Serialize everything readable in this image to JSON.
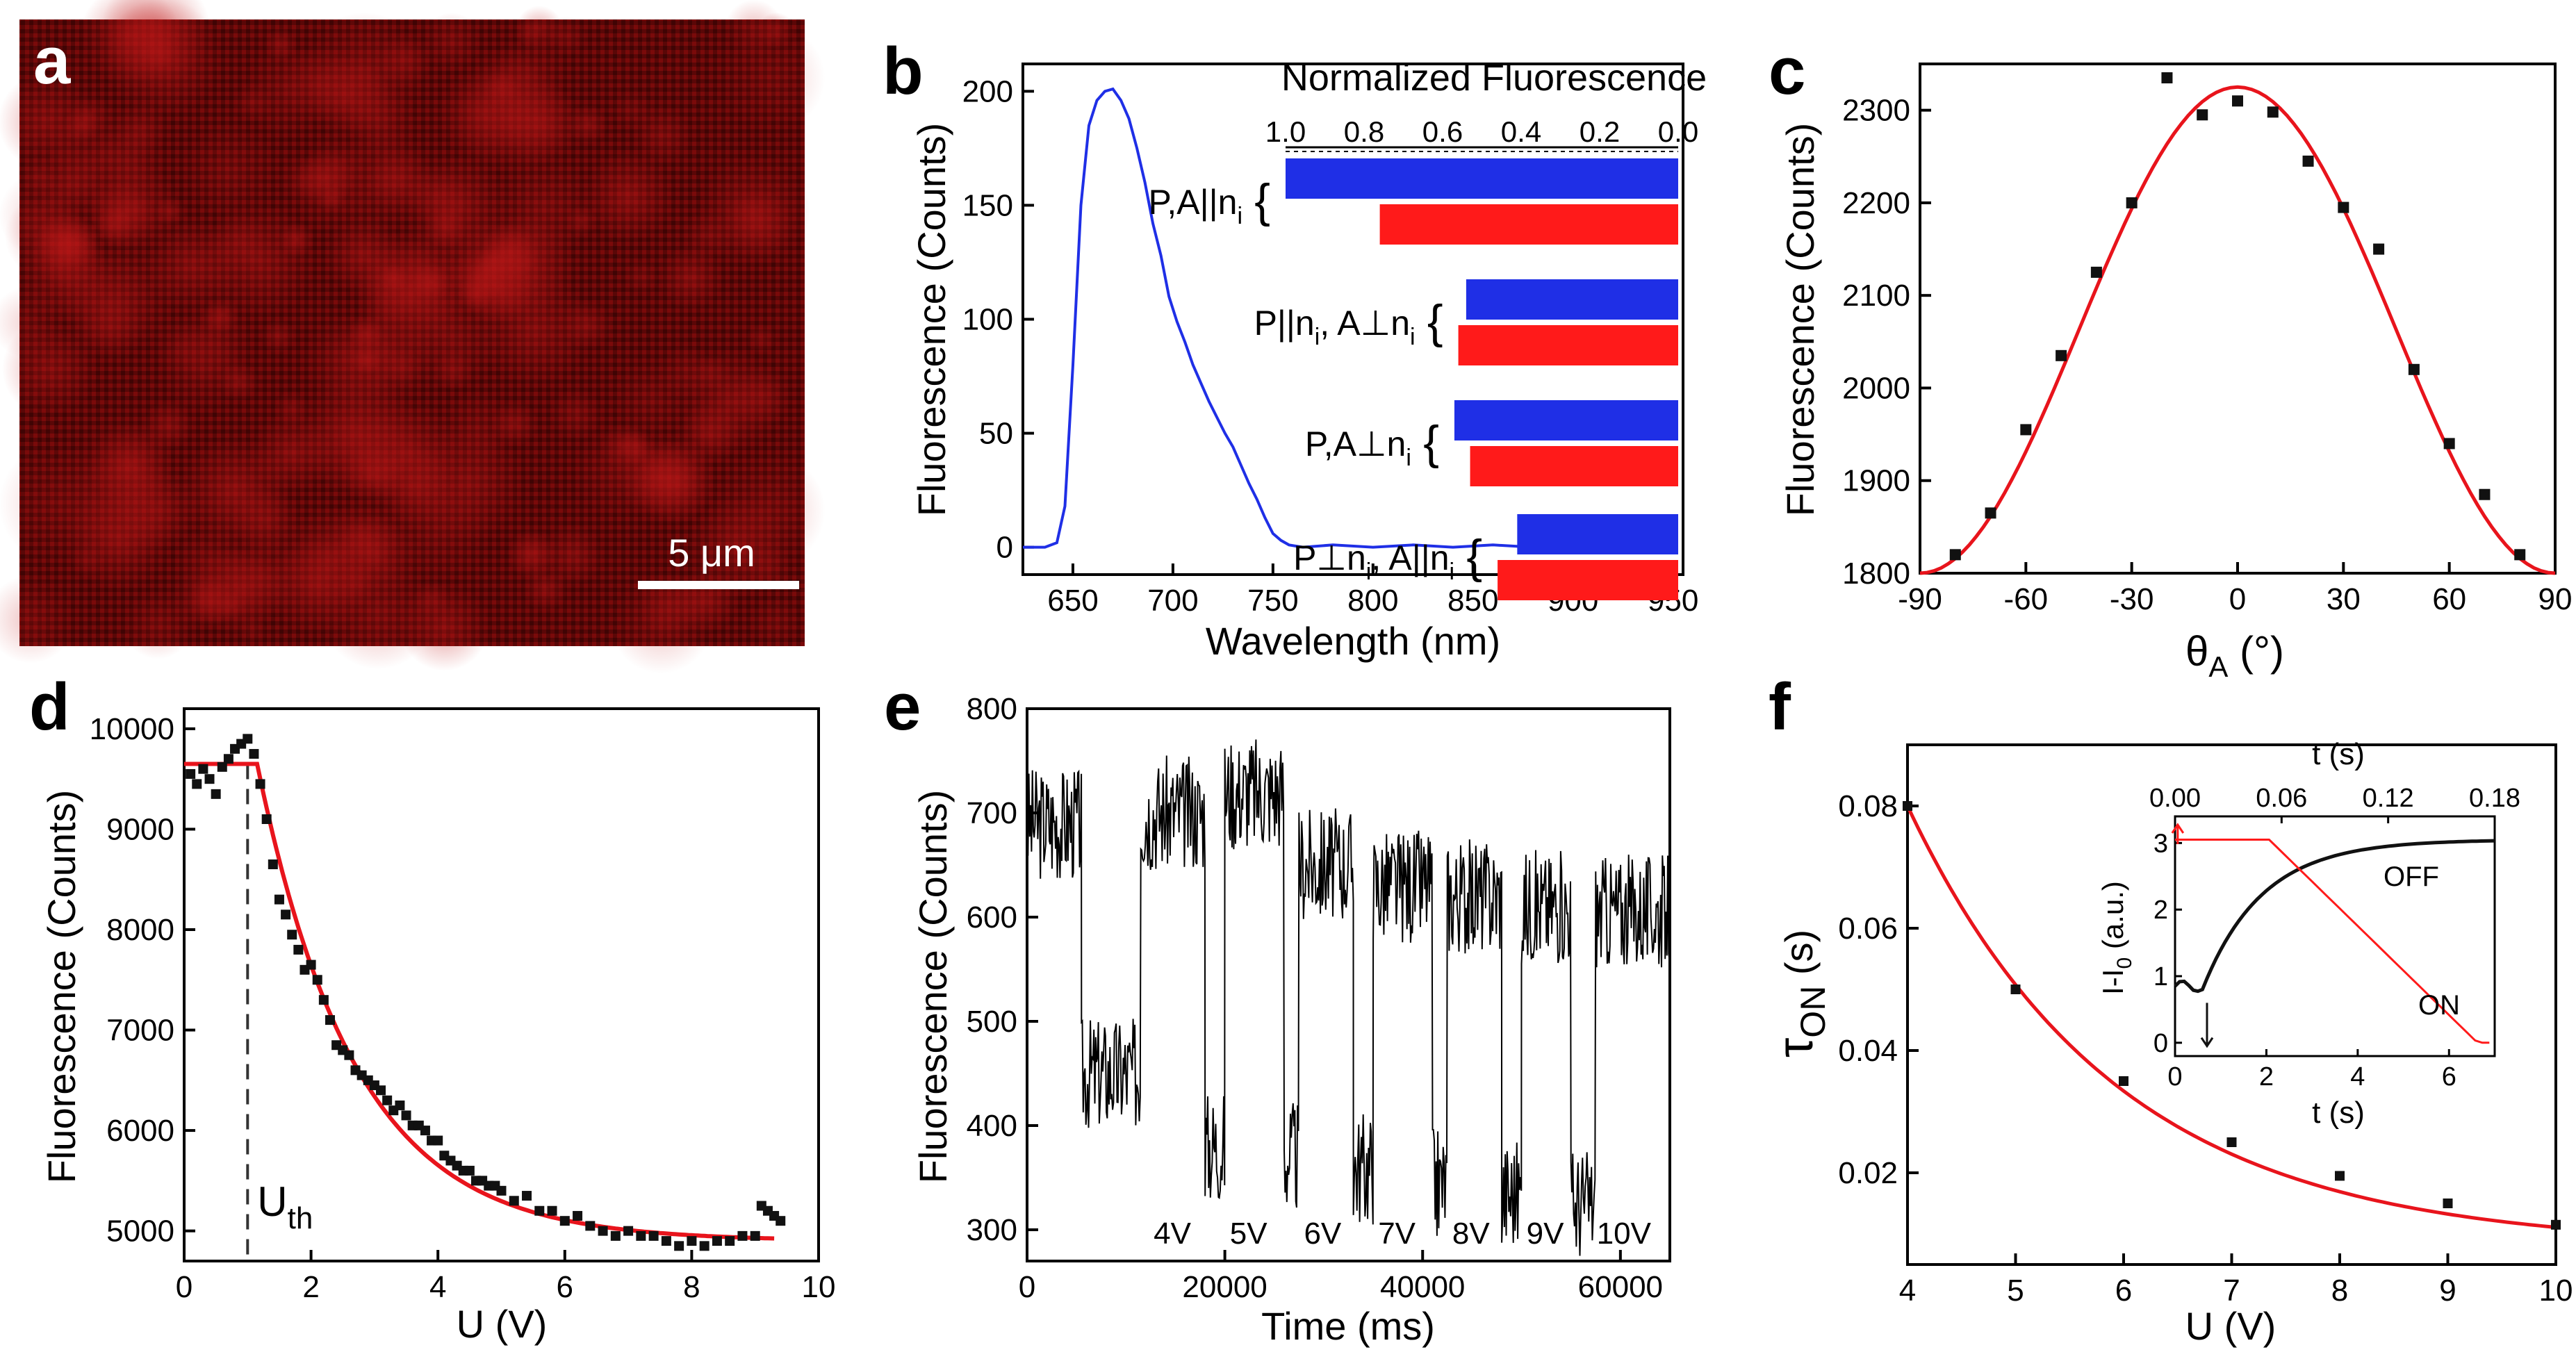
{
  "colors": {
    "blue": "#1f2fe6",
    "red": "#ff1a1a",
    "curve": "#e8141c",
    "black": "#111111"
  },
  "chart_data": [
    {
      "panel": "a",
      "type": "image",
      "description": "fluorescence-map",
      "scalebar_label": "5 μm"
    },
    {
      "panel": "b",
      "type": "line",
      "xlabel": "Wavelength (nm)",
      "ylabel": "Fluorescence (Counts)",
      "xlim": [
        625,
        955
      ],
      "ylim": [
        -12,
        212
      ],
      "xticks": [
        650,
        700,
        750,
        800,
        850,
        900,
        950
      ],
      "yticks": [
        0,
        50,
        100,
        150,
        200
      ],
      "series": [
        {
          "name": "spectrum",
          "color": "blue",
          "x": [
            625,
            636,
            642,
            646,
            650,
            654,
            658,
            662,
            666,
            670,
            674,
            678,
            682,
            686,
            690,
            694,
            698,
            702,
            706,
            710,
            714,
            718,
            722,
            726,
            730,
            734,
            738,
            742,
            746,
            750,
            754,
            758,
            765,
            780,
            800,
            820,
            840,
            860,
            880,
            900,
            920,
            940,
            950
          ],
          "y": [
            0,
            0,
            2,
            18,
            80,
            150,
            185,
            196,
            200,
            201,
            196,
            188,
            175,
            160,
            142,
            128,
            110,
            99,
            90,
            80,
            72,
            64,
            57,
            50,
            44,
            36,
            28,
            21,
            13,
            6,
            3,
            1,
            0,
            1,
            0,
            1,
            0,
            1,
            0,
            1,
            0,
            1,
            0
          ]
        }
      ],
      "inset": {
        "type": "bar",
        "title": "Normalized Fluorescence",
        "axis_ticks": [
          "1.0",
          "0.8",
          "0.6",
          "0.4",
          "0.2",
          "0.0"
        ],
        "xlim": [
          1.0,
          0.0
        ],
        "groups": [
          {
            "label_main": "P,A||n",
            "label_sub": "i",
            "blue": 1.0,
            "red": 0.76
          },
          {
            "label_main": "P||n",
            "label_sub": "i",
            "label_main2": ", A⊥n",
            "label_sub2": "i",
            "blue": 0.54,
            "red": 0.56
          },
          {
            "label_main": "P,A⊥n",
            "label_sub": "i",
            "blue": 0.57,
            "red": 0.53
          },
          {
            "label_main": "P⊥n",
            "label_sub": "i",
            "label_main2": ", A||n",
            "label_sub2": "i",
            "blue": 0.41,
            "red": 0.46
          }
        ]
      }
    },
    {
      "panel": "c",
      "type": "scatter",
      "xlabel_main": "θ",
      "xlabel_sub": "A",
      "xlabel_unit": " (°)",
      "ylabel": "Fluorescence (Counts)",
      "xlim": [
        -90,
        90
      ],
      "ylim": [
        1800,
        2350
      ],
      "xticks": [
        -90,
        -60,
        -30,
        0,
        30,
        60,
        90
      ],
      "yticks": [
        1800,
        1900,
        2000,
        2100,
        2200,
        2300
      ],
      "points": {
        "x": [
          -80,
          -70,
          -60,
          -50,
          -40,
          -30,
          -20,
          -10,
          0,
          10,
          20,
          30,
          40,
          50,
          60,
          70,
          80
        ],
        "y": [
          1820,
          1865,
          1955,
          2035,
          2125,
          2200,
          2335,
          2295,
          2310,
          2298,
          2245,
          2195,
          2150,
          2020,
          1940,
          1885,
          1820
        ]
      },
      "fit": {
        "type": "cos2",
        "min": 1800,
        "max": 2325,
        "center": 0
      }
    },
    {
      "panel": "d",
      "type": "scatter",
      "xlabel": "U (V)",
      "ylabel": "Fluorescence (Counts)",
      "xlim": [
        0,
        10
      ],
      "ylim": [
        4700,
        10200
      ],
      "xticks": [
        0,
        2,
        4,
        6,
        8,
        10
      ],
      "yticks": [
        5000,
        6000,
        7000,
        8000,
        9000,
        10000
      ],
      "threshold": {
        "x": 1.0,
        "label_main": "U",
        "label_sub": "th"
      },
      "points": {
        "x": [
          0.1,
          0.2,
          0.3,
          0.4,
          0.5,
          0.6,
          0.7,
          0.8,
          0.9,
          1.0,
          1.1,
          1.2,
          1.3,
          1.4,
          1.5,
          1.6,
          1.7,
          1.8,
          1.9,
          2.0,
          2.1,
          2.2,
          2.3,
          2.4,
          2.5,
          2.6,
          2.7,
          2.8,
          2.9,
          3.0,
          3.1,
          3.2,
          3.3,
          3.4,
          3.5,
          3.6,
          3.7,
          3.8,
          3.9,
          4.0,
          4.1,
          4.2,
          4.3,
          4.4,
          4.5,
          4.6,
          4.7,
          4.8,
          4.9,
          5.0,
          5.2,
          5.4,
          5.6,
          5.8,
          6.0,
          6.2,
          6.4,
          6.6,
          6.8,
          7.0,
          7.2,
          7.4,
          7.6,
          7.8,
          8.0,
          8.2,
          8.4,
          8.6,
          8.8,
          9.0,
          9.1,
          9.2,
          9.3,
          9.4
        ],
        "y": [
          9550,
          9450,
          9600,
          9500,
          9350,
          9620,
          9700,
          9800,
          9850,
          9900,
          9750,
          9450,
          9100,
          8650,
          8300,
          8150,
          7950,
          7800,
          7600,
          7650,
          7500,
          7300,
          7100,
          6850,
          6800,
          6750,
          6600,
          6550,
          6500,
          6450,
          6400,
          6300,
          6200,
          6250,
          6150,
          6050,
          6050,
          6000,
          5900,
          5900,
          5750,
          5700,
          5650,
          5600,
          5600,
          5500,
          5500,
          5450,
          5450,
          5400,
          5300,
          5350,
          5200,
          5200,
          5100,
          5150,
          5050,
          5000,
          4950,
          5000,
          4950,
          4950,
          4900,
          4850,
          4900,
          4850,
          4900,
          4900,
          4950,
          4950,
          5250,
          5200,
          5150,
          5100
        ]
      },
      "fit": {
        "type": "exp",
        "plateau": 9650,
        "knee": 1.15,
        "floor": 4900,
        "tau": 1.55,
        "xend": 9.3
      }
    },
    {
      "panel": "e",
      "type": "line",
      "xlabel": "Time (ms)",
      "ylabel": "Fluorescence (Counts)",
      "xlim": [
        0,
        65000
      ],
      "ylim": [
        270,
        800
      ],
      "xticks": [
        0,
        20000,
        40000,
        60000
      ],
      "yticks": [
        300,
        400,
        500,
        600,
        700,
        800
      ],
      "levels": {
        "on": [
          690,
          700,
          720,
          650,
          630,
          620,
          610,
          605,
          600
        ],
        "off": [
          450,
          380,
          370,
          360,
          345,
          335,
          325,
          310
        ]
      },
      "voltage_labels": [
        "4V",
        "5V",
        "6V",
        "7V",
        "8V",
        "9V",
        "10V"
      ]
    },
    {
      "panel": "f",
      "type": "scatter",
      "xlabel": "U (V)",
      "ylabel_main": "τ",
      "ylabel_sub": "ON",
      "ylabel_unit": " (s)",
      "xlim": [
        4,
        10
      ],
      "ylim": [
        0.005,
        0.09
      ],
      "xticks": [
        4,
        5,
        6,
        7,
        8,
        9,
        10
      ],
      "yticks": [
        0.02,
        0.04,
        0.06,
        0.08
      ],
      "points": {
        "x": [
          4,
          5,
          6,
          7,
          8,
          9,
          10
        ],
        "y": [
          0.08,
          0.05,
          0.035,
          0.025,
          0.0195,
          0.015,
          0.0115
        ]
      },
      "fit": {
        "type": "exp",
        "a": 0.0721,
        "k": 0.52,
        "c": 0.0079
      },
      "inset": {
        "xlabel_bottom": "t (s)",
        "xlabel_top": "t (s)",
        "ylabel_main": "I-I",
        "ylabel_sub": "0",
        "ylabel_unit": " (a.u.)",
        "xlim_bottom": [
          0,
          7
        ],
        "xticks_bottom": [
          0,
          2,
          4,
          6
        ],
        "xlim_top": [
          0,
          0.18
        ],
        "xticks_top": [
          "0.00",
          "0.06",
          "0.12",
          "0.18"
        ],
        "ylim": [
          -0.2,
          3.4
        ],
        "yticks": [
          0,
          1,
          2,
          3
        ],
        "off_label": "OFF",
        "on_label": "ON"
      }
    }
  ],
  "panel_labels": [
    "a",
    "b",
    "c",
    "d",
    "e",
    "f"
  ]
}
